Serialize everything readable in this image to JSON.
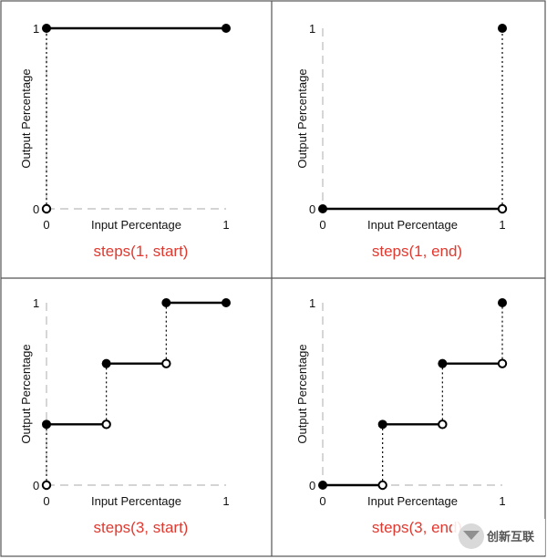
{
  "colors": {
    "caption": "#e0392f",
    "line": "#000000",
    "axis_dash": "#bbbbbb",
    "divider": "#555555"
  },
  "chart_data": [
    {
      "type": "line",
      "caption": "steps(1, start)",
      "xlabel": "Input Percentage",
      "ylabel": "Output Percentage",
      "xticks": [
        "0",
        "1"
      ],
      "yticks": [
        "0",
        "1"
      ],
      "xlim": [
        0,
        1
      ],
      "ylim": [
        0,
        1
      ],
      "segments": [
        {
          "x": [
            0,
            1
          ],
          "y": [
            1,
            1
          ]
        }
      ],
      "jumps": [
        {
          "x": 0,
          "from": 0,
          "to": 1
        }
      ],
      "filled_points": [
        [
          0,
          1
        ],
        [
          1,
          1
        ]
      ],
      "open_points": [
        [
          0,
          0
        ]
      ]
    },
    {
      "type": "line",
      "caption": "steps(1, end)",
      "xlabel": "Input Percentage",
      "ylabel": "Output Percentage",
      "xticks": [
        "0",
        "1"
      ],
      "yticks": [
        "0",
        "1"
      ],
      "xlim": [
        0,
        1
      ],
      "ylim": [
        0,
        1
      ],
      "segments": [
        {
          "x": [
            0,
            1
          ],
          "y": [
            0,
            0
          ]
        }
      ],
      "jumps": [
        {
          "x": 1,
          "from": 0,
          "to": 1
        }
      ],
      "filled_points": [
        [
          0,
          0
        ],
        [
          1,
          1
        ]
      ],
      "open_points": [
        [
          1,
          0
        ]
      ]
    },
    {
      "type": "line",
      "caption": "steps(3, start)",
      "xlabel": "Input Percentage",
      "ylabel": "Output Percentage",
      "xticks": [
        "0",
        "1"
      ],
      "yticks": [
        "0",
        "1"
      ],
      "xlim": [
        0,
        1
      ],
      "ylim": [
        0,
        1
      ],
      "segments": [
        {
          "x": [
            0,
            0.3333
          ],
          "y": [
            0.3333,
            0.3333
          ]
        },
        {
          "x": [
            0.3333,
            0.6667
          ],
          "y": [
            0.6667,
            0.6667
          ]
        },
        {
          "x": [
            0.6667,
            1
          ],
          "y": [
            1,
            1
          ]
        }
      ],
      "jumps": [
        {
          "x": 0,
          "from": 0,
          "to": 0.3333
        },
        {
          "x": 0.3333,
          "from": 0.3333,
          "to": 0.6667
        },
        {
          "x": 0.6667,
          "from": 0.6667,
          "to": 1
        }
      ],
      "filled_points": [
        [
          0,
          0.3333
        ],
        [
          0.3333,
          0.6667
        ],
        [
          0.6667,
          1
        ],
        [
          1,
          1
        ]
      ],
      "open_points": [
        [
          0,
          0
        ],
        [
          0.3333,
          0.3333
        ],
        [
          0.6667,
          0.6667
        ]
      ]
    },
    {
      "type": "line",
      "caption": "steps(3, end)",
      "xlabel": "Input Percentage",
      "ylabel": "Output Percentage",
      "xticks": [
        "0",
        "1"
      ],
      "yticks": [
        "0",
        "1"
      ],
      "xlim": [
        0,
        1
      ],
      "ylim": [
        0,
        1
      ],
      "segments": [
        {
          "x": [
            0,
            0.3333
          ],
          "y": [
            0,
            0
          ]
        },
        {
          "x": [
            0.3333,
            0.6667
          ],
          "y": [
            0.3333,
            0.3333
          ]
        },
        {
          "x": [
            0.6667,
            1
          ],
          "y": [
            0.6667,
            0.6667
          ]
        }
      ],
      "jumps": [
        {
          "x": 0.3333,
          "from": 0,
          "to": 0.3333
        },
        {
          "x": 0.6667,
          "from": 0.3333,
          "to": 0.6667
        },
        {
          "x": 1,
          "from": 0.6667,
          "to": 1
        }
      ],
      "filled_points": [
        [
          0,
          0
        ],
        [
          0.3333,
          0.3333
        ],
        [
          0.6667,
          0.6667
        ],
        [
          1,
          1
        ]
      ],
      "open_points": [
        [
          0.3333,
          0
        ],
        [
          0.6667,
          0.3333
        ],
        [
          1,
          0.6667
        ]
      ]
    }
  ],
  "watermark": {
    "text": "创新互联",
    "icon": "logo-icon"
  }
}
